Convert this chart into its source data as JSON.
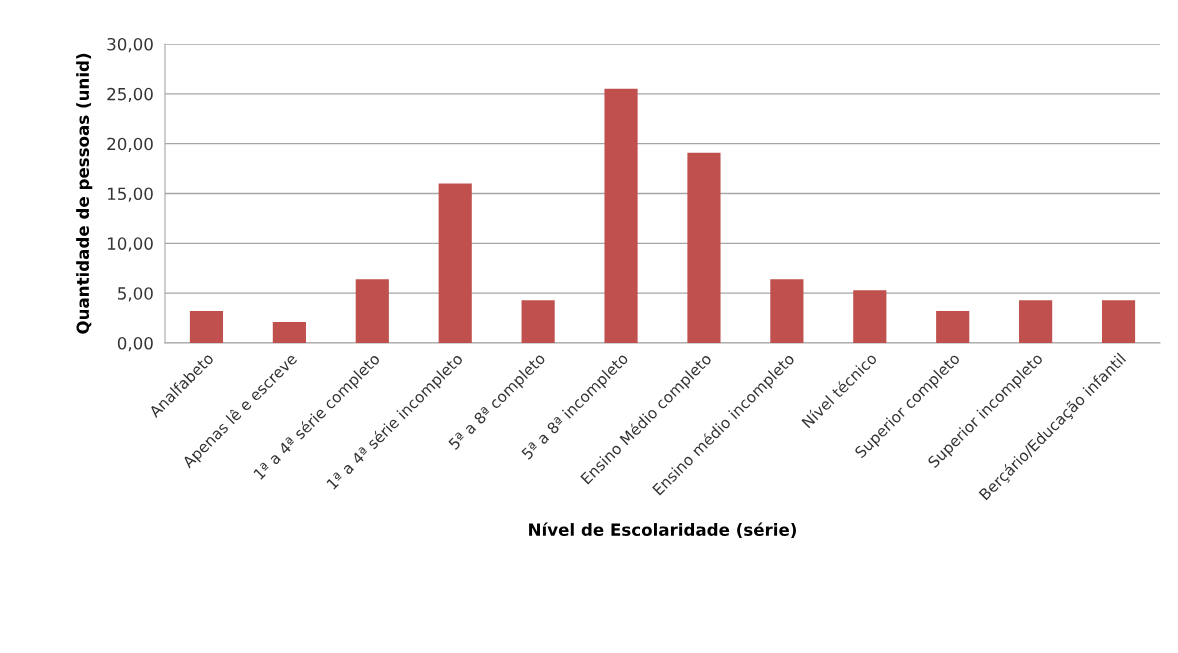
{
  "chart_data": {
    "type": "bar",
    "xlabel": "Nível de Escolaridade (série)",
    "ylabel": "Quantidade de pessoas (unid)",
    "categories": [
      "Analfabeto",
      "Apenas lê e escreve",
      "1ª a 4ª série completo",
      "1ª a 4ª série incompleto",
      "5ª a 8ª completo",
      "5ª a 8ª incompleto",
      "Ensino Médio completo",
      "Ensino médio incompleto",
      "Nível técnico",
      "Superior completo",
      "Superior incompleto",
      "Berçário/Educação infantil"
    ],
    "values": [
      3.2,
      2.1,
      6.4,
      16.0,
      4.3,
      25.5,
      19.1,
      6.4,
      5.3,
      3.2,
      4.3,
      4.3
    ],
    "color": "#c0504d",
    "ylim": [
      0,
      30
    ],
    "yticks": [
      {
        "value": 0,
        "label": "0,00"
      },
      {
        "value": 5,
        "label": "5,00"
      },
      {
        "value": 10,
        "label": "10,00"
      },
      {
        "value": 15,
        "label": "15,00"
      },
      {
        "value": 20,
        "label": "20,00"
      },
      {
        "value": 25,
        "label": "25,00"
      },
      {
        "value": 30,
        "label": "30,00"
      }
    ],
    "grid": "y"
  }
}
